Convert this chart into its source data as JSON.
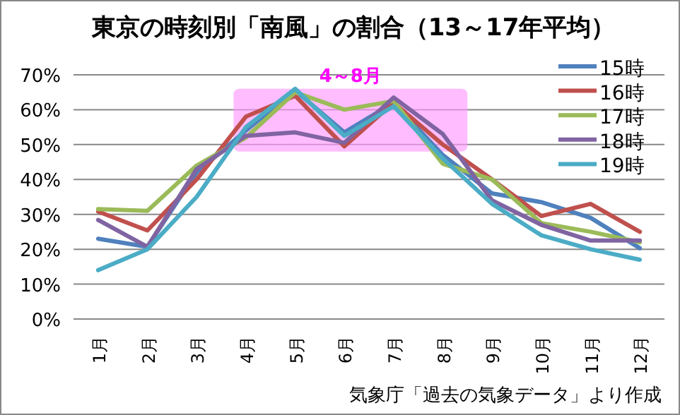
{
  "chart_data": {
    "type": "line",
    "title": "東京の時刻別「南風」の割合（13～17年平均）",
    "categories": [
      "1月",
      "2月",
      "3月",
      "4月",
      "5月",
      "6月",
      "7月",
      "8月",
      "9月",
      "10月",
      "11月",
      "12月"
    ],
    "series": [
      {
        "name": "15時",
        "color": "#4f81bd",
        "values": [
          23,
          20.7,
          42,
          54,
          65.5,
          53.5,
          62,
          47,
          36,
          33.5,
          29,
          20.3
        ]
      },
      {
        "name": "16時",
        "color": "#c0504d",
        "values": [
          30.8,
          25.4,
          40,
          58,
          64,
          49.5,
          62,
          50,
          40,
          29.5,
          33,
          25
        ]
      },
      {
        "name": "17時",
        "color": "#9bbb59",
        "values": [
          31.5,
          31,
          44,
          52,
          65,
          60,
          62.5,
          44.5,
          40,
          27.5,
          25,
          22
        ]
      },
      {
        "name": "18時",
        "color": "#8064a2",
        "values": [
          28.4,
          20.7,
          43,
          52.5,
          53.5,
          50.5,
          63.5,
          53,
          34,
          27,
          22.5,
          22.5
        ]
      },
      {
        "name": "19時",
        "color": "#4bacc6",
        "values": [
          14,
          20,
          35,
          55,
          66,
          52.5,
          61,
          46,
          33,
          24,
          20,
          17
        ]
      }
    ],
    "ylim": [
      0,
      70
    ],
    "yticks": [
      {
        "value": 0,
        "label": "0%"
      },
      {
        "value": 10,
        "label": "10%"
      },
      {
        "value": 20,
        "label": "20%"
      },
      {
        "value": 30,
        "label": "30%"
      },
      {
        "value": 40,
        "label": "40%"
      },
      {
        "value": 50,
        "label": "50%"
      },
      {
        "value": 60,
        "label": "60%"
      },
      {
        "value": 70,
        "label": "70%"
      }
    ],
    "grid": "y",
    "legend": "top right",
    "line_style": "solid",
    "marker": "none",
    "bands": [
      {
        "axis": "x",
        "from": "4月",
        "to": "8月",
        "label": "4～8月",
        "color": "#ff99ff"
      }
    ],
    "annotations": [
      "気象庁「過去の気象データ」より作成"
    ]
  }
}
